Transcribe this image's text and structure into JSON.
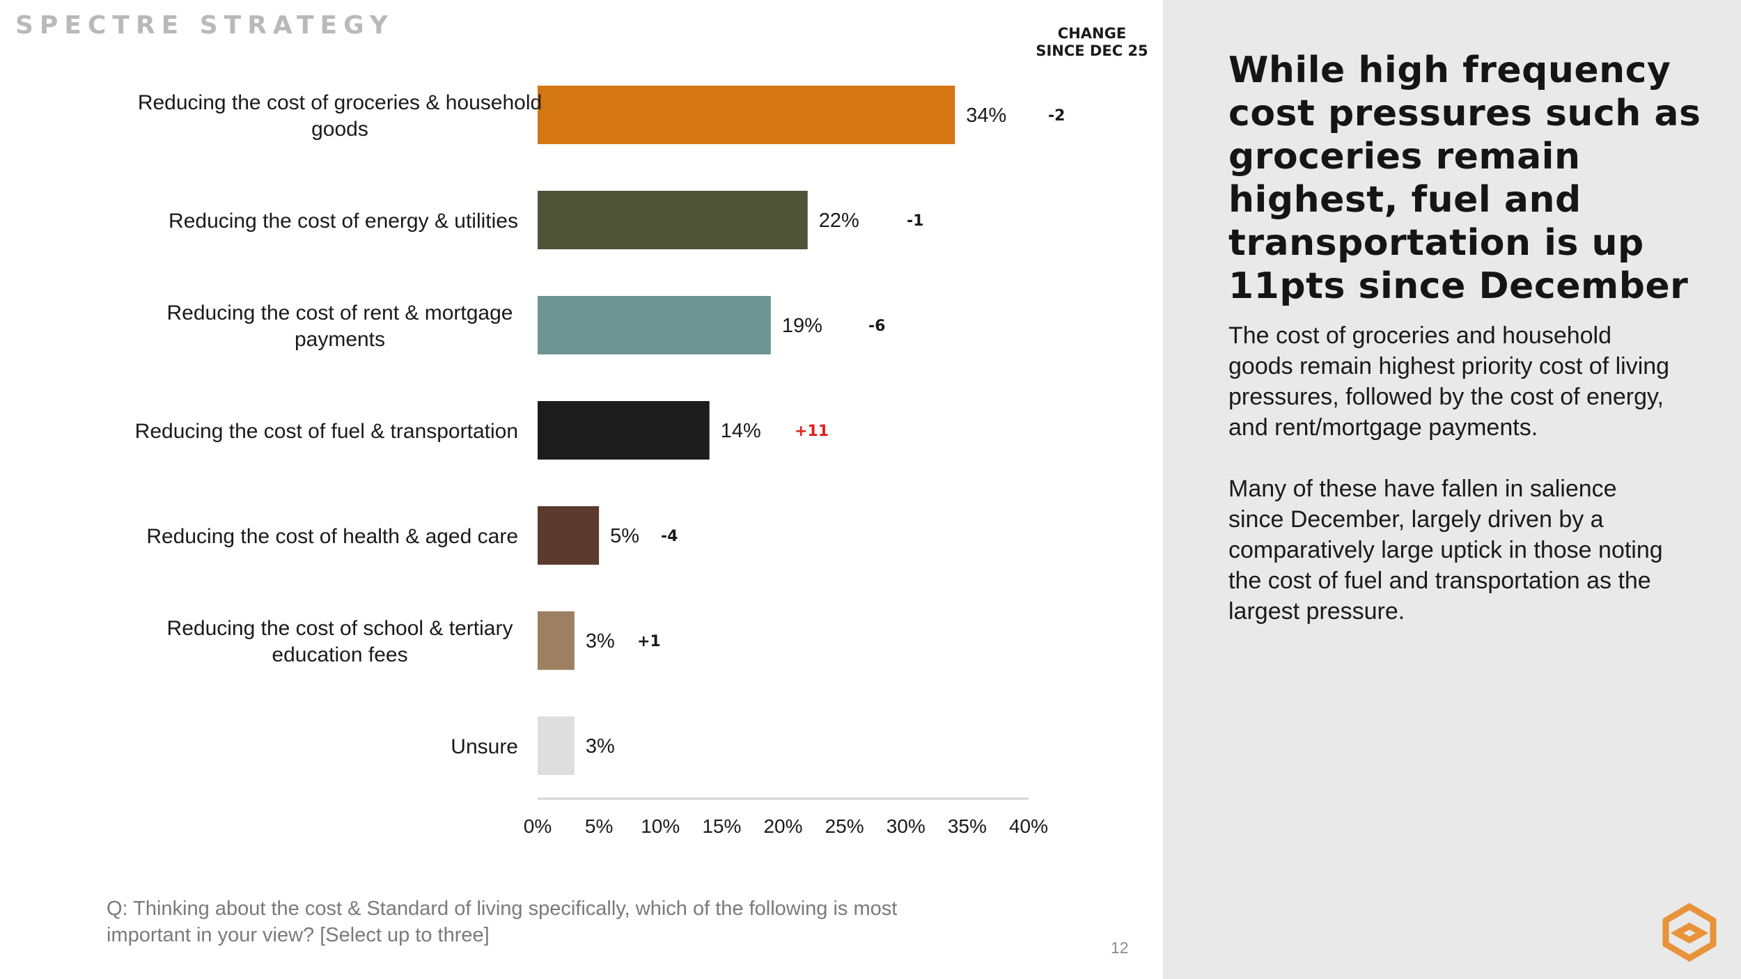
{
  "brand": {
    "name": "SPECTRE STRATEGY"
  },
  "change_header": {
    "line1": "CHANGE",
    "line2": "SINCE DEC 25"
  },
  "chart_data": {
    "type": "bar",
    "orientation": "horizontal",
    "categories": [
      "Reducing the cost of groceries & household goods",
      "Reducing the cost of energy & utilities",
      "Reducing the cost of rent & mortgage payments",
      "Reducing the cost of fuel & transportation",
      "Reducing the cost of health & aged care",
      "Reducing the cost of school & tertiary education fees",
      "Unsure"
    ],
    "category_lines": [
      [
        "Reducing the cost of groceries & household",
        "goods"
      ],
      [
        "Reducing the cost of energy & utilities"
      ],
      [
        "Reducing the cost of rent & mortgage",
        "payments"
      ],
      [
        "Reducing the cost of fuel & transportation"
      ],
      [
        "Reducing the cost of health & aged care"
      ],
      [
        "Reducing the cost of school & tertiary",
        "education fees"
      ],
      [
        "Unsure"
      ]
    ],
    "values": [
      34,
      22,
      19,
      14,
      5,
      3,
      3
    ],
    "value_labels": [
      "34%",
      "22%",
      "19%",
      "14%",
      "5%",
      "3%",
      "3%"
    ],
    "changes": [
      "-2",
      "-1",
      "-6",
      "+11",
      "-4",
      "+1",
      ""
    ],
    "change_highlight": [
      false,
      false,
      false,
      true,
      false,
      false,
      false
    ],
    "colors": [
      "#d37613",
      "#4f5338",
      "#6e9494",
      "#1c1c1c",
      "#5c3a2e",
      "#9d8062",
      "#dedede"
    ],
    "highlight_color": "#e0201b",
    "xlim": [
      0,
      40
    ],
    "xticks": [
      "0%",
      "5%",
      "10%",
      "15%",
      "20%",
      "25%",
      "30%",
      "35%",
      "40%"
    ],
    "xtick_values": [
      0,
      5,
      10,
      15,
      20,
      25,
      30,
      35,
      40
    ],
    "grid": false,
    "xlabel": "",
    "ylabel": ""
  },
  "question": "Q: Thinking about the cost & Standard of living specifically, which of the following is most important in your view? [Select up to three]",
  "page_number": "12",
  "sidebar": {
    "headline": "While high frequency cost pressures such as groceries remain highest, fuel and transportation is up 11pts since December",
    "paragraph1": "The cost of groceries and household goods remain highest priority cost of living pressures, followed by the cost of energy, and rent/mortgage payments.",
    "paragraph2": "Many of these have fallen in salience since December, largely driven by a comparatively large uptick in those noting the cost of fuel and transportation as the largest pressure."
  },
  "logo": {
    "name": "brand-logo-icon",
    "color": "#e8923a"
  }
}
